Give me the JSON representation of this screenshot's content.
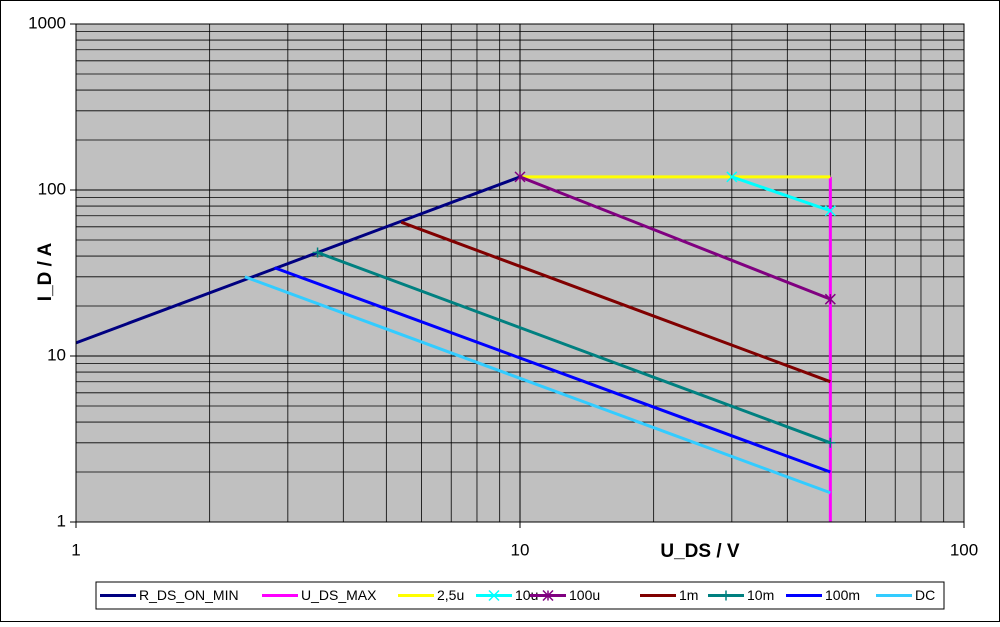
{
  "chart_data": {
    "type": "line",
    "log_x": true,
    "log_y": true,
    "grid": true,
    "legend": "bottom",
    "xlabel": "U_DS / V",
    "ylabel": "I_D / A",
    "xlim": [
      1,
      100
    ],
    "ylim": [
      1,
      1000
    ],
    "xticks": [
      1,
      10,
      100
    ],
    "yticks": [
      1,
      10,
      100,
      1000
    ],
    "series": [
      {
        "name": "R_DS_ON_MIN",
        "color": "#000080",
        "x": [
          1,
          10
        ],
        "values": [
          12,
          120
        ]
      },
      {
        "name": "U_DS_MAX",
        "color": "#ff00ff",
        "x": [
          50,
          50
        ],
        "values": [
          1,
          120
        ]
      },
      {
        "name": "2,5u",
        "color": "#ffff00",
        "x": [
          10,
          50
        ],
        "values": [
          120,
          120
        ]
      },
      {
        "name": "10u",
        "color": "#00ffff",
        "marker": "x",
        "x": [
          30,
          50
        ],
        "values": [
          120,
          75
        ]
      },
      {
        "name": "100u",
        "color": "#800080",
        "marker": "star",
        "x": [
          10,
          50
        ],
        "values": [
          120,
          22
        ]
      },
      {
        "name": "1m",
        "color": "#800000",
        "x": [
          5.4,
          50
        ],
        "values": [
          64,
          7
        ]
      },
      {
        "name": "10m",
        "color": "#008080",
        "marker": "plus",
        "x": [
          3.5,
          50
        ],
        "values": [
          42,
          3
        ]
      },
      {
        "name": "100m",
        "color": "#0000ff",
        "x": [
          2.8,
          50
        ],
        "values": [
          34,
          2
        ]
      },
      {
        "name": "DC",
        "color": "#33ccff",
        "x": [
          2.4,
          50
        ],
        "values": [
          30,
          1.5
        ]
      }
    ]
  }
}
